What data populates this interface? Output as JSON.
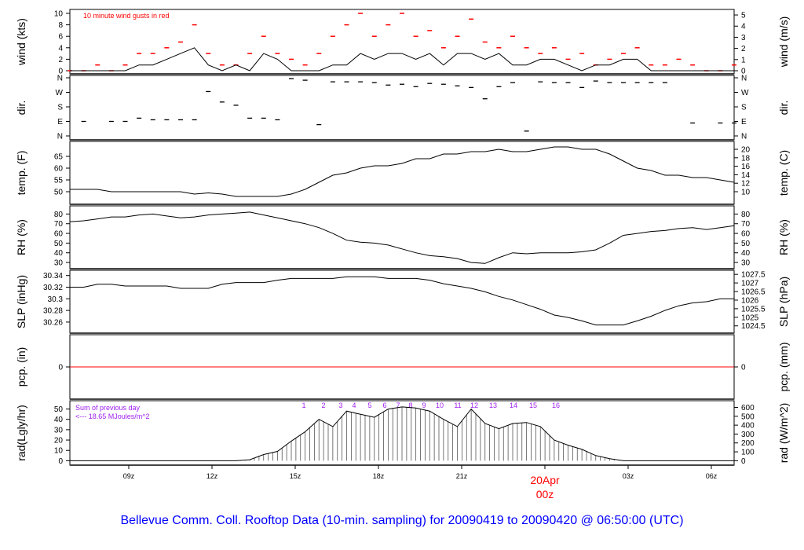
{
  "title": "Bellevue Comm. Coll. Rooftop Data (10-min. sampling) for 20090419  to  20090420 @ 06:50:00  (UTC)",
  "colors": {
    "title": "#0000ff",
    "gust": "#ff0000",
    "date_marker": "#ff0000",
    "rad_labels": "#a020f0",
    "line": "#000000",
    "pcp_line": "#ff0000"
  },
  "chart_data": {
    "type": "line",
    "x_label_note": "samples every 30 min from 06:50z 19Apr to 06:50z 20Apr",
    "x": [
      "06:50z",
      "07:20z",
      "07:50z",
      "08:20z",
      "08:50z",
      "09:20z",
      "09:50z",
      "10:20z",
      "10:50z",
      "11:20z",
      "11:50z",
      "12:20z",
      "12:50z",
      "13:20z",
      "13:50z",
      "14:20z",
      "14:50z",
      "15:20z",
      "15:50z",
      "16:20z",
      "16:50z",
      "17:20z",
      "17:50z",
      "18:20z",
      "18:50z",
      "19:20z",
      "19:50z",
      "20:20z",
      "20:50z",
      "21:20z",
      "21:50z",
      "22:20z",
      "22:50z",
      "23:20z",
      "23:50z",
      "00:20z",
      "00:50z",
      "01:20z",
      "01:50z",
      "02:20z",
      "02:50z",
      "03:20z",
      "03:50z",
      "04:20z",
      "04:50z",
      "05:20z",
      "05:50z",
      "06:20z",
      "06:50z"
    ],
    "x_ticks": [
      "09z",
      "12z",
      "15z",
      "18z",
      "21z",
      "00z",
      "03z",
      "06z"
    ],
    "date_marker": {
      "date": "20Apr",
      "time": "00z"
    },
    "panels": [
      {
        "key": "wind",
        "ylabel": "wind (kts)",
        "ylabel_right": "wind (m/s)",
        "ylim": [
          0,
          10
        ],
        "ticks": [
          0,
          2,
          4,
          6,
          8,
          10
        ],
        "ticks_right": [
          0,
          1,
          2,
          3,
          4,
          5
        ],
        "annotation": "10  minute wind gusts in red",
        "series": [
          {
            "name": "wind",
            "values": [
              0,
              0,
              0,
              0,
              0,
              1,
              1,
              2,
              3,
              4,
              1,
              0,
              1,
              0,
              3,
              2,
              0,
              0,
              0,
              1,
              1,
              3,
              2,
              3,
              3,
              2,
              3,
              1,
              3,
              3,
              2,
              3,
              1,
              1,
              2,
              2,
              1,
              0,
              1,
              1,
              2,
              2,
              0,
              0,
              0,
              0,
              0,
              0,
              0
            ]
          },
          {
            "name": "gust",
            "values": [
              0,
              0,
              1,
              0,
              1,
              3,
              3,
              4,
              5,
              8,
              3,
              1,
              1,
              3,
              6,
              3,
              2,
              1,
              3,
              6,
              8,
              10,
              6,
              8,
              10,
              6,
              7,
              4,
              6,
              9,
              5,
              4,
              6,
              4,
              3,
              4,
              2,
              3,
              1,
              2,
              3,
              4,
              1,
              1,
              2,
              1,
              0,
              0,
              1
            ]
          }
        ]
      },
      {
        "key": "dir",
        "ylabel": "dir.",
        "ylabel_right": "dir.",
        "ylim": [
          0,
          360
        ],
        "tick_labels": [
          "N",
          "E",
          "S",
          "W",
          "N"
        ],
        "tick_values": [
          0,
          90,
          180,
          270,
          360
        ],
        "series": [
          {
            "name": "direction",
            "values": [
              null,
              90,
              null,
              90,
              90,
              110,
              100,
              100,
              100,
              100,
              275,
              210,
              190,
              110,
              110,
              100,
              355,
              345,
              70,
              335,
              335,
              335,
              330,
              315,
              320,
              305,
              325,
              320,
              310,
              300,
              230,
              305,
              330,
              30,
              335,
              330,
              330,
              300,
              340,
              330,
              330,
              330,
              330,
              330,
              null,
              80,
              null,
              80,
              80
            ]
          }
        ]
      },
      {
        "key": "temp",
        "ylabel": "temp. (F)",
        "ylabel_right": "temp. (C)",
        "ylim": [
          46,
          70
        ],
        "ticks": [
          50,
          55,
          60,
          65
        ],
        "ticks_right": [
          10,
          12,
          14,
          16,
          18,
          20
        ],
        "series": [
          {
            "name": "temp",
            "values": [
              51,
              51,
              51,
              50,
              50,
              50,
              50,
              50,
              50,
              49,
              49.5,
              49,
              48,
              48,
              48,
              48,
              49,
              51,
              54,
              57,
              58,
              60,
              61,
              61,
              62,
              64,
              64,
              66,
              66,
              67,
              67,
              68,
              67,
              67,
              68,
              69,
              69,
              68,
              68,
              66,
              63,
              60,
              59,
              57,
              57,
              56,
              56,
              55,
              54
            ]
          }
        ]
      },
      {
        "key": "rh",
        "ylabel": "RH (%)",
        "ylabel_right": "RH (%)",
        "ylim": [
          26,
          86
        ],
        "ticks": [
          30,
          40,
          50,
          60,
          70,
          80
        ],
        "ticks_right": [
          30,
          40,
          50,
          60,
          70,
          80
        ],
        "series": [
          {
            "name": "rh",
            "values": [
              72,
              73,
              75,
              77,
              77,
              79,
              80,
              78,
              76,
              77,
              79,
              80,
              81,
              82,
              79,
              76,
              73,
              70,
              66,
              60,
              53,
              51,
              50,
              48,
              44,
              40,
              37,
              36,
              34,
              30,
              29,
              35,
              40,
              39,
              40,
              40,
              40,
              41,
              43,
              50,
              58,
              60,
              62,
              63,
              65,
              66,
              64,
              66,
              68
            ]
          }
        ]
      },
      {
        "key": "slp",
        "ylabel": "SLP (inHg)",
        "ylabel_right": "SLP (hPa)",
        "ylim": [
          30.245,
          30.345
        ],
        "ticks": [
          30.26,
          30.28,
          30.3,
          30.32,
          30.34
        ],
        "ticks_right": [
          1024.5,
          1025,
          1025.5,
          1026,
          1026.5,
          1027,
          1027.5
        ],
        "series": [
          {
            "name": "slp",
            "values": [
              30.32,
              30.32,
              30.325,
              30.325,
              30.322,
              30.322,
              30.322,
              30.322,
              30.318,
              30.318,
              30.318,
              30.325,
              30.328,
              30.328,
              30.328,
              30.332,
              30.335,
              30.335,
              30.335,
              30.335,
              30.338,
              30.338,
              30.338,
              30.335,
              30.335,
              30.335,
              30.332,
              30.326,
              30.322,
              30.318,
              30.312,
              30.304,
              30.298,
              30.29,
              30.282,
              30.272,
              30.268,
              30.262,
              30.255,
              30.255,
              30.255,
              30.262,
              30.27,
              30.28,
              30.288,
              30.293,
              30.295,
              30.3,
              30.3
            ]
          }
        ]
      },
      {
        "key": "pcp",
        "ylabel": "pcp. (in)",
        "ylabel_right": "pcp. (mm)",
        "ylim": [
          -1,
          1
        ],
        "ticks": [
          0
        ],
        "ticks_right": [
          0
        ],
        "series": [
          {
            "name": "pcp",
            "values": [
              0,
              0,
              0,
              0,
              0,
              0,
              0,
              0,
              0,
              0,
              0,
              0,
              0,
              0,
              0,
              0,
              0,
              0,
              0,
              0,
              0,
              0,
              0,
              0,
              0,
              0,
              0,
              0,
              0,
              0,
              0,
              0,
              0,
              0,
              0,
              0,
              0,
              0,
              0,
              0,
              0,
              0,
              0,
              0,
              0,
              0,
              0,
              0,
              0
            ]
          }
        ]
      },
      {
        "key": "rad",
        "ylabel": "rad(Lgly/hr)",
        "ylabel_right": "rad (W/m^2)",
        "ylim": [
          -2,
          55
        ],
        "ticks": [
          0,
          10,
          20,
          30,
          40,
          50
        ],
        "ticks_right": [
          0,
          100,
          200,
          300,
          400,
          500,
          600
        ],
        "annotation_lines": [
          "Sum of previous day",
          "<--- 18.65 MJoules/m^2"
        ],
        "hour_labels": [
          "1",
          "2",
          "3",
          "4",
          "5",
          "6",
          "7",
          "8",
          "9",
          "10",
          "11",
          "12",
          "13",
          "14",
          "15",
          "16"
        ],
        "series": [
          {
            "name": "rad",
            "values": [
              0,
              0,
              0,
              0,
              0,
              0,
              0,
              0,
              0,
              0,
              0,
              0,
              0,
              1,
              6,
              9,
              19,
              28,
              40,
              33,
              48,
              45,
              42,
              50,
              52,
              51,
              48,
              40,
              33,
              50,
              36,
              31,
              36,
              37,
              33,
              20,
              15,
              11,
              5,
              2,
              0,
              0,
              0,
              0,
              0,
              0,
              0,
              0,
              0
            ]
          }
        ]
      }
    ]
  }
}
